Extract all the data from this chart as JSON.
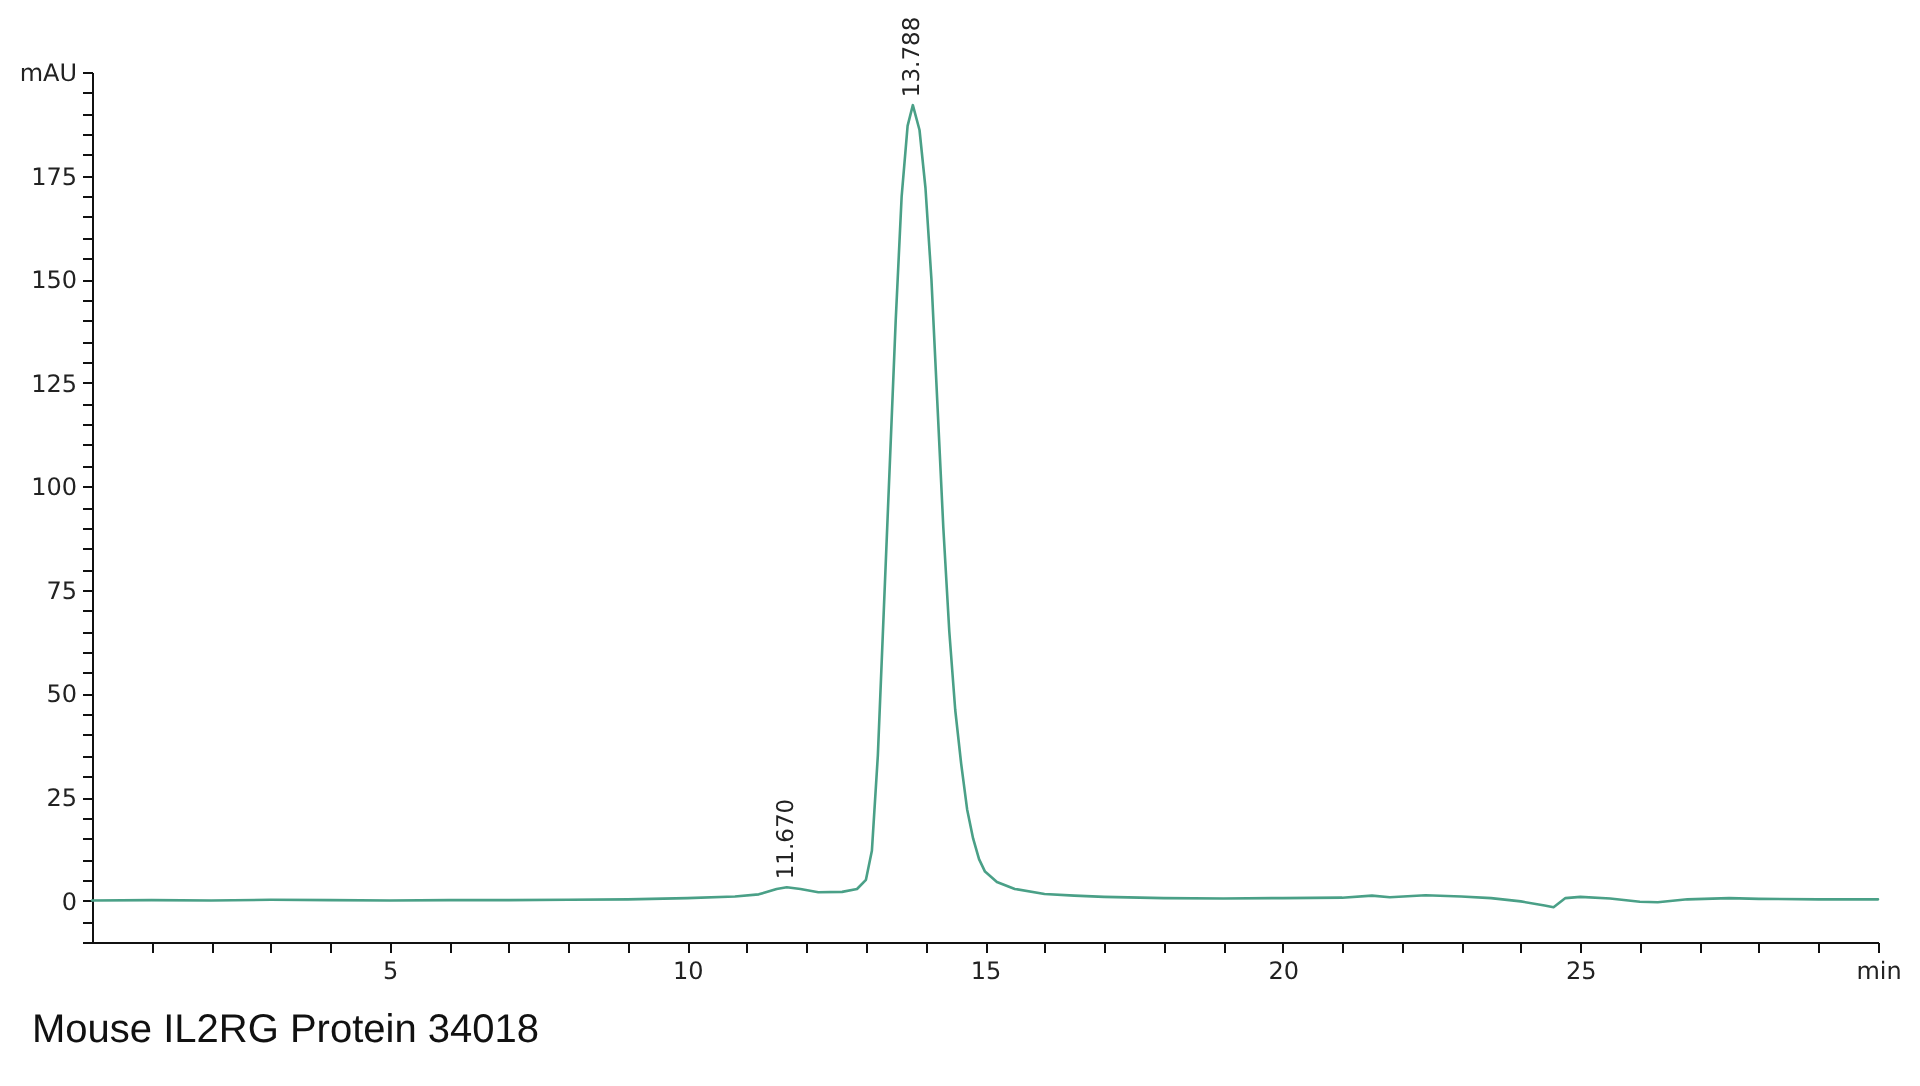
{
  "chart_data": {
    "type": "line",
    "title": "Mouse IL2RG Protein 34018",
    "x": [
      0,
      1,
      2,
      3,
      4,
      5,
      6,
      7,
      8,
      9,
      10,
      10.8,
      11.2,
      11.5,
      11.67,
      11.9,
      12.2,
      12.6,
      12.85,
      13.0,
      13.1,
      13.2,
      13.3,
      13.4,
      13.5,
      13.6,
      13.7,
      13.788,
      13.9,
      14.0,
      14.1,
      14.2,
      14.3,
      14.4,
      14.5,
      14.6,
      14.7,
      14.8,
      14.9,
      15.0,
      15.2,
      15.5,
      16.0,
      16.5,
      17,
      18,
      19,
      20,
      21,
      21.5,
      21.8,
      22.4,
      23,
      23.5,
      24,
      24.4,
      24.55,
      24.75,
      25,
      25.5,
      26,
      26.3,
      26.8,
      27.5,
      28,
      29,
      30
    ],
    "series": [
      {
        "color": "#4aa087",
        "values": [
          0,
          0.1,
          0,
          0.2,
          0.1,
          0,
          0.1,
          0.1,
          0.2,
          0.3,
          0.6,
          1.0,
          1.5,
          2.8,
          3.2,
          2.8,
          2.0,
          2.1,
          2.8,
          5,
          12,
          35,
          70,
          105,
          140,
          170,
          187,
          192,
          186,
          172,
          150,
          120,
          90,
          65,
          46,
          33,
          22,
          15,
          10,
          7,
          4.5,
          2.8,
          1.6,
          1.2,
          0.9,
          0.6,
          0.5,
          0.6,
          0.7,
          1.2,
          0.8,
          1.3,
          1.0,
          0.6,
          -0.2,
          -1.2,
          -1.6,
          0.6,
          0.9,
          0.5,
          -0.3,
          -0.4,
          0.3,
          0.6,
          0.4,
          0.3,
          0.3
        ]
      }
    ],
    "xlim": [
      0,
      30
    ],
    "ylim": [
      -10,
      200
    ],
    "xticks": [
      {
        "value": 1,
        "label": null
      },
      {
        "value": 2,
        "label": null
      },
      {
        "value": 3,
        "label": null
      },
      {
        "value": 4,
        "label": null
      },
      5,
      {
        "value": 6,
        "label": null
      },
      {
        "value": 7,
        "label": null
      },
      {
        "value": 8,
        "label": null
      },
      {
        "value": 9,
        "label": null
      },
      10,
      {
        "value": 11,
        "label": null
      },
      {
        "value": 12,
        "label": null
      },
      {
        "value": 13,
        "label": null
      },
      {
        "value": 14,
        "label": null
      },
      15,
      {
        "value": 16,
        "label": null
      },
      {
        "value": 17,
        "label": null
      },
      {
        "value": 18,
        "label": null
      },
      {
        "value": 19,
        "label": null
      },
      20,
      {
        "value": 21,
        "label": null
      },
      {
        "value": 22,
        "label": null
      },
      {
        "value": 23,
        "label": null
      },
      {
        "value": 24,
        "label": null
      },
      25,
      {
        "value": 26,
        "label": null
      },
      {
        "value": 27,
        "label": null
      },
      {
        "value": 28,
        "label": null
      },
      {
        "value": 29,
        "label": null
      },
      {
        "value": 30,
        "label": "min"
      }
    ],
    "yticks": [
      {
        "value": -10,
        "label": null
      },
      {
        "value": -5,
        "label": null
      },
      0,
      {
        "value": 5,
        "label": null
      },
      {
        "value": 10,
        "label": null
      },
      {
        "value": 15,
        "label": null
      },
      {
        "value": 20,
        "label": null
      },
      25,
      {
        "value": 30,
        "label": null
      },
      {
        "value": 35,
        "label": null
      },
      {
        "value": 40,
        "label": null
      },
      {
        "value": 45,
        "label": null
      },
      50,
      {
        "value": 55,
        "label": null
      },
      {
        "value": 60,
        "label": null
      },
      {
        "value": 65,
        "label": null
      },
      {
        "value": 70,
        "label": null
      },
      75,
      {
        "value": 80,
        "label": null
      },
      {
        "value": 85,
        "label": null
      },
      {
        "value": 90,
        "label": null
      },
      {
        "value": 95,
        "label": null
      },
      100,
      {
        "value": 105,
        "label": null
      },
      {
        "value": 110,
        "label": null
      },
      {
        "value": 115,
        "label": null
      },
      {
        "value": 120,
        "label": null
      },
      125,
      {
        "value": 130,
        "label": null
      },
      {
        "value": 135,
        "label": null
      },
      {
        "value": 140,
        "label": null
      },
      {
        "value": 145,
        "label": null
      },
      150,
      {
        "value": 155,
        "label": null
      },
      {
        "value": 160,
        "label": null
      },
      {
        "value": 165,
        "label": null
      },
      {
        "value": 170,
        "label": null
      },
      175,
      {
        "value": 180,
        "label": null
      },
      {
        "value": 185,
        "label": null
      },
      {
        "value": 190,
        "label": null
      },
      {
        "value": 195,
        "label": null
      },
      {
        "value": 200,
        "label": "mAU"
      }
    ],
    "annotations": [
      {
        "text": "11.670",
        "x": 11.67,
        "y": 3.2
      },
      {
        "text": "13.788",
        "x": 13.788,
        "y": 192
      }
    ],
    "line_style": "solid"
  }
}
